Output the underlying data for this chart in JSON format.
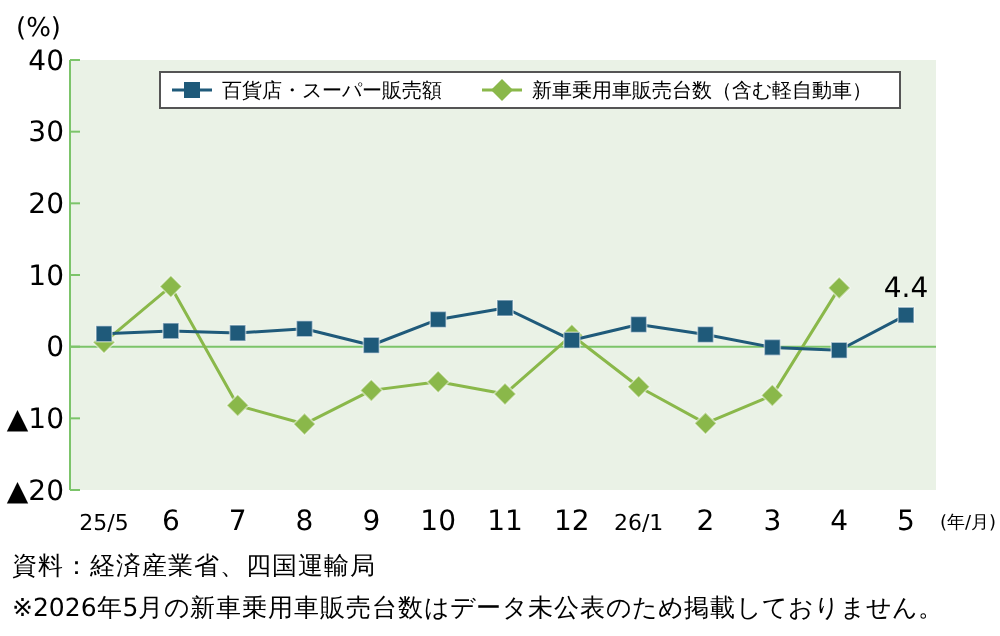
{
  "chart_data": {
    "type": "line",
    "ylabel": "(%)",
    "xlabel": "(年/月)",
    "categories": [
      "25/5",
      "6",
      "7",
      "8",
      "9",
      "10",
      "11",
      "12",
      "26/1",
      "2",
      "3",
      "4",
      "5"
    ],
    "series": [
      {
        "name": "百貨店・スーパー販売額",
        "color": "#1f5a7a",
        "marker": "square",
        "values": [
          1.8,
          2.2,
          1.9,
          2.5,
          0.2,
          3.8,
          5.4,
          0.9,
          3.1,
          1.7,
          -0.1,
          -0.5,
          4.4
        ],
        "value_labels": [
          null,
          null,
          null,
          null,
          null,
          null,
          null,
          null,
          null,
          null,
          null,
          null,
          "4.4"
        ]
      },
      {
        "name": "新車乗用車販売台数（含む軽自動車）",
        "color": "#8ab84a",
        "marker": "diamond",
        "values": [
          0.6,
          8.4,
          -8.2,
          -10.8,
          -6.1,
          -4.9,
          -6.6,
          1.6,
          -5.6,
          -10.7,
          -6.8,
          8.2,
          null
        ]
      }
    ],
    "ylim": [
      -20,
      40
    ],
    "yticks": [
      {
        "value": -20,
        "label": "▲20"
      },
      {
        "value": -10,
        "label": "▲10"
      },
      0,
      10,
      20,
      30,
      40
    ],
    "ref_lines": [
      {
        "axis": "y",
        "value": 0,
        "color": "#7cc46a"
      }
    ],
    "grid": false,
    "legend": "top",
    "annotations": [
      "資料：経済産業省、四国運輸局",
      "※2026年5月の新車乗用車販売台数はデータ未公表のため掲載しておりません。"
    ]
  }
}
